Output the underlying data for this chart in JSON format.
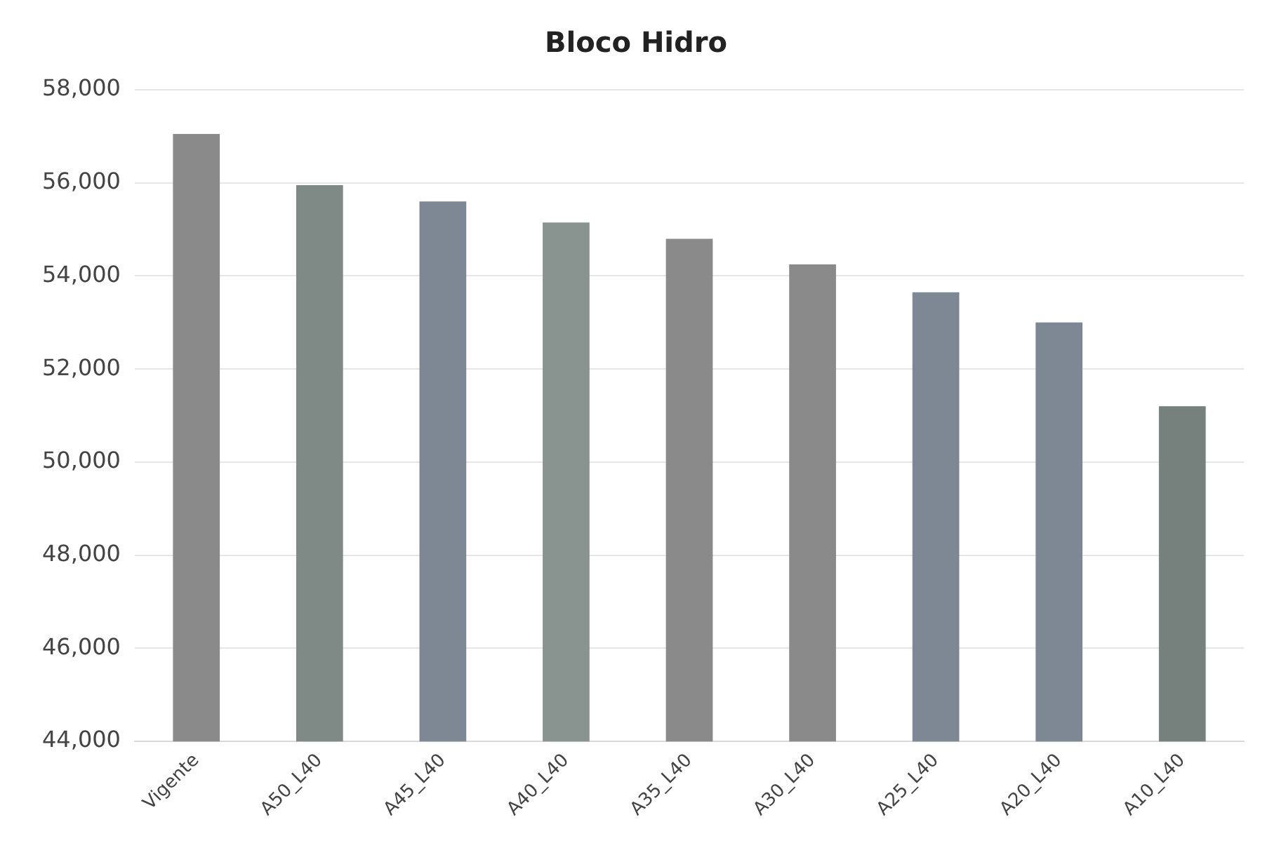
{
  "chart_data": {
    "type": "bar",
    "title": "Bloco Hidro",
    "categories": [
      "Vigente",
      "A50_L40",
      "A45_L40",
      "A40_L40",
      "A35_L40",
      "A30_L40",
      "A25_L40",
      "A20_L40",
      "A10_L40"
    ],
    "values": [
      57050,
      55950,
      55600,
      55150,
      54800,
      54250,
      53650,
      53000,
      51200
    ],
    "colors": [
      "#8a8a8a",
      "#7f8a86",
      "#7e8794",
      "#899390",
      "#8a8a8a",
      "#8a8a8a",
      "#7e8794",
      "#7e8794",
      "#76807c"
    ],
    "ylim": [
      44000,
      58000
    ],
    "yticks": [
      {
        "value": 44000,
        "label": "44,000"
      },
      {
        "value": 46000,
        "label": "46,000"
      },
      {
        "value": 48000,
        "label": "48,000"
      },
      {
        "value": 50000,
        "label": "50,000"
      },
      {
        "value": 52000,
        "label": "52,000"
      },
      {
        "value": 54000,
        "label": "54,000"
      },
      {
        "value": 56000,
        "label": "56,000"
      },
      {
        "value": 58000,
        "label": "58,000"
      }
    ],
    "grid": "y",
    "legend": false
  }
}
